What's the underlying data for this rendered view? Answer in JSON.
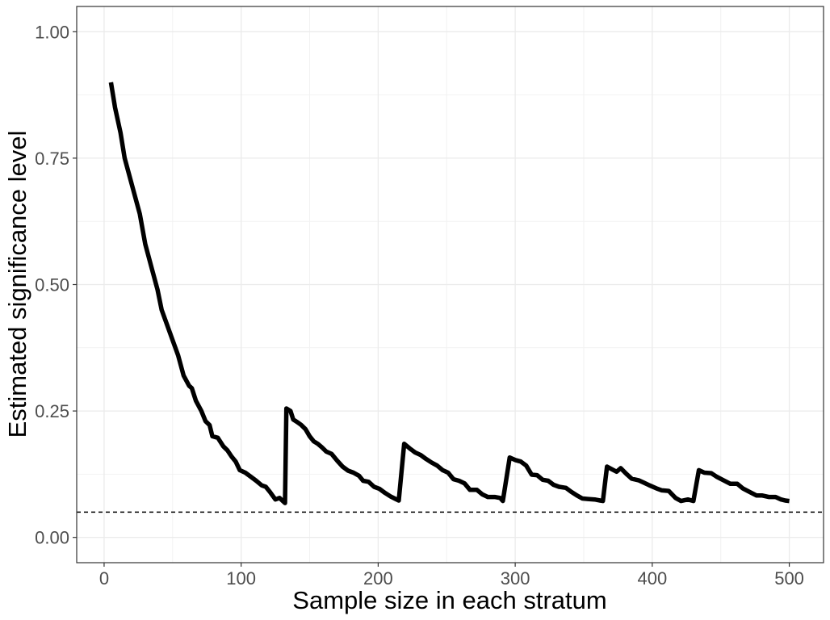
{
  "chart_data": {
    "type": "line",
    "title": "",
    "xlabel": "Sample size in each stratum",
    "ylabel": "Estimated significance level",
    "xlim": [
      -20,
      525
    ],
    "ylim": [
      -0.05,
      1.05
    ],
    "grid": true,
    "legend": "none",
    "x_ticks": [
      0,
      100,
      200,
      300,
      400,
      500
    ],
    "x_tick_labels": [
      "0",
      "100",
      "200",
      "300",
      "400",
      "500"
    ],
    "y_ticks": [
      0.0,
      0.25,
      0.5,
      0.75,
      1.0
    ],
    "y_tick_labels": [
      "0.00",
      "0.25",
      "0.50",
      "0.75",
      "1.00"
    ],
    "reference_line": {
      "y": 0.05,
      "style": "dashed"
    },
    "colors": {
      "line": "#000000",
      "grid": "#ebebeb",
      "panel_border": "#333333",
      "tick_label": "#4d4d4d"
    },
    "series": [
      {
        "name": "Estimated significance level",
        "points": [
          [
            5,
            0.9
          ],
          [
            8,
            0.85
          ],
          [
            12,
            0.8
          ],
          [
            15,
            0.75
          ],
          [
            19,
            0.71
          ],
          [
            22,
            0.68
          ],
          [
            26,
            0.64
          ],
          [
            30,
            0.58
          ],
          [
            35,
            0.53
          ],
          [
            39,
            0.49
          ],
          [
            42,
            0.45
          ],
          [
            46,
            0.42
          ],
          [
            50,
            0.39
          ],
          [
            54,
            0.36
          ],
          [
            58,
            0.32
          ],
          [
            62,
            0.3
          ],
          [
            64,
            0.295
          ],
          [
            67,
            0.27
          ],
          [
            71,
            0.25
          ],
          [
            74,
            0.23
          ],
          [
            77,
            0.222
          ],
          [
            79,
            0.2
          ],
          [
            83,
            0.197
          ],
          [
            87,
            0.18
          ],
          [
            90,
            0.172
          ],
          [
            93,
            0.16
          ],
          [
            96,
            0.15
          ],
          [
            99,
            0.133
          ],
          [
            103,
            0.128
          ],
          [
            107,
            0.12
          ],
          [
            111,
            0.112
          ],
          [
            115,
            0.103
          ],
          [
            118,
            0.1
          ],
          [
            121,
            0.09
          ],
          [
            125,
            0.075
          ],
          [
            128,
            0.078
          ],
          [
            130,
            0.073
          ],
          [
            132,
            0.068
          ],
          [
            133,
            0.255
          ],
          [
            136,
            0.25
          ],
          [
            138,
            0.233
          ],
          [
            141,
            0.228
          ],
          [
            144,
            0.222
          ],
          [
            147,
            0.214
          ],
          [
            150,
            0.2
          ],
          [
            153,
            0.19
          ],
          [
            156,
            0.185
          ],
          [
            159,
            0.178
          ],
          [
            162,
            0.17
          ],
          [
            166,
            0.165
          ],
          [
            170,
            0.152
          ],
          [
            174,
            0.14
          ],
          [
            178,
            0.132
          ],
          [
            182,
            0.128
          ],
          [
            186,
            0.122
          ],
          [
            189,
            0.112
          ],
          [
            193,
            0.11
          ],
          [
            197,
            0.1
          ],
          [
            201,
            0.096
          ],
          [
            205,
            0.088
          ],
          [
            209,
            0.081
          ],
          [
            212,
            0.077
          ],
          [
            215,
            0.073
          ],
          [
            219,
            0.185
          ],
          [
            223,
            0.176
          ],
          [
            227,
            0.168
          ],
          [
            231,
            0.163
          ],
          [
            235,
            0.155
          ],
          [
            239,
            0.148
          ],
          [
            243,
            0.142
          ],
          [
            247,
            0.133
          ],
          [
            251,
            0.128
          ],
          [
            255,
            0.115
          ],
          [
            259,
            0.112
          ],
          [
            263,
            0.107
          ],
          [
            267,
            0.094
          ],
          [
            272,
            0.094
          ],
          [
            276,
            0.085
          ],
          [
            280,
            0.08
          ],
          [
            285,
            0.08
          ],
          [
            289,
            0.078
          ],
          [
            291,
            0.072
          ],
          [
            296,
            0.158
          ],
          [
            300,
            0.153
          ],
          [
            304,
            0.15
          ],
          [
            308,
            0.142
          ],
          [
            312,
            0.124
          ],
          [
            316,
            0.123
          ],
          [
            320,
            0.114
          ],
          [
            324,
            0.112
          ],
          [
            328,
            0.104
          ],
          [
            332,
            0.1
          ],
          [
            337,
            0.098
          ],
          [
            341,
            0.09
          ],
          [
            345,
            0.083
          ],
          [
            349,
            0.077
          ],
          [
            353,
            0.076
          ],
          [
            358,
            0.075
          ],
          [
            362,
            0.073
          ],
          [
            364,
            0.072
          ],
          [
            367,
            0.14
          ],
          [
            371,
            0.134
          ],
          [
            374,
            0.13
          ],
          [
            377,
            0.137
          ],
          [
            381,
            0.126
          ],
          [
            385,
            0.116
          ],
          [
            390,
            0.113
          ],
          [
            394,
            0.108
          ],
          [
            398,
            0.103
          ],
          [
            403,
            0.097
          ],
          [
            407,
            0.093
          ],
          [
            412,
            0.092
          ],
          [
            417,
            0.078
          ],
          [
            421,
            0.072
          ],
          [
            426,
            0.075
          ],
          [
            430,
            0.072
          ],
          [
            434,
            0.133
          ],
          [
            438,
            0.128
          ],
          [
            443,
            0.127
          ],
          [
            447,
            0.12
          ],
          [
            452,
            0.113
          ],
          [
            457,
            0.106
          ],
          [
            462,
            0.106
          ],
          [
            466,
            0.097
          ],
          [
            471,
            0.09
          ],
          [
            476,
            0.083
          ],
          [
            480,
            0.083
          ],
          [
            485,
            0.08
          ],
          [
            490,
            0.08
          ],
          [
            494,
            0.075
          ],
          [
            497,
            0.073
          ],
          [
            500,
            0.072
          ]
        ]
      }
    ]
  }
}
